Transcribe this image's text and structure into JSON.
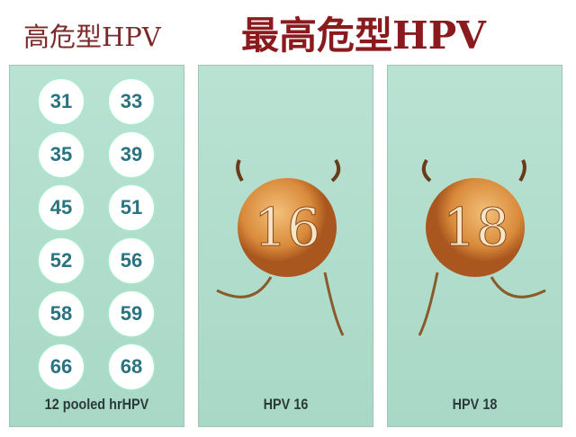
{
  "titles": {
    "left": "高危型HPV",
    "main": "最高危型HPV"
  },
  "panels": [
    {
      "label": "12 pooled hrHPV",
      "types": [
        "31",
        "33",
        "35",
        "39",
        "45",
        "51",
        "52",
        "56",
        "58",
        "59",
        "66",
        "68"
      ]
    },
    {
      "label": "HPV 16",
      "virus_number": "16"
    },
    {
      "label": "HPV 18",
      "virus_number": "18"
    }
  ],
  "colors": {
    "title": "#8b1a1e",
    "panel": "#b0dccb",
    "number": "#2a7381",
    "virus": "#d98a3a"
  }
}
